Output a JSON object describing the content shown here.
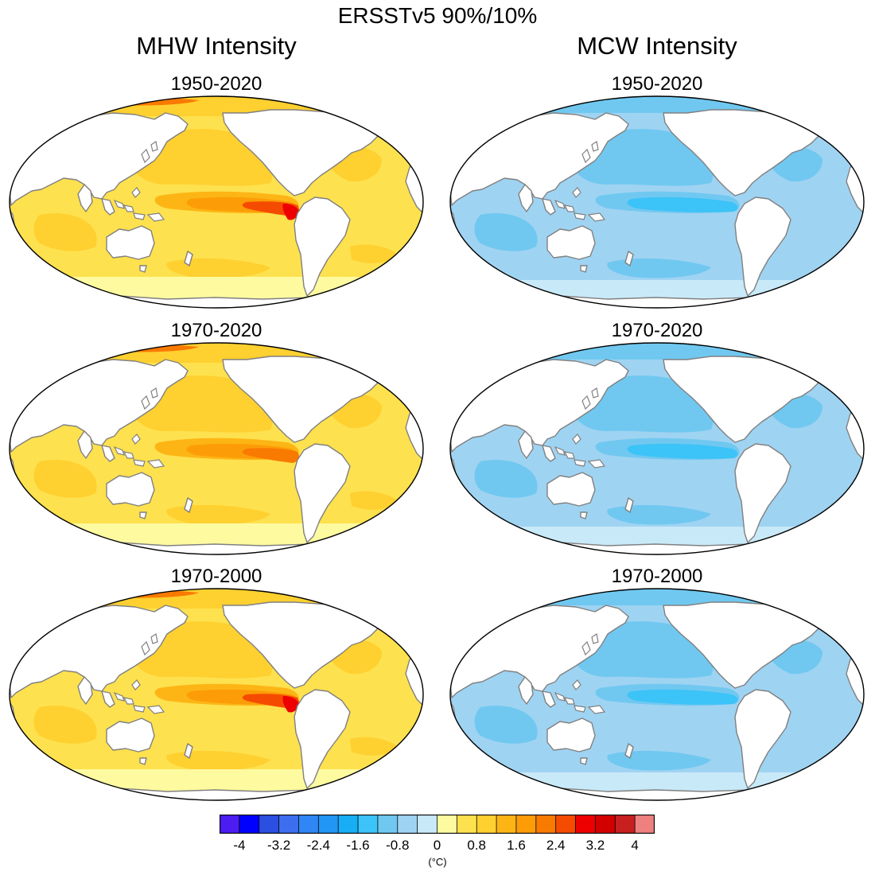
{
  "title": "ERSSTv5 90%/10%",
  "columns": [
    {
      "title": "MHW Intensity",
      "kind": "mhw",
      "panels": [
        {
          "period": "1950-2020",
          "band_max_level": 3.2
        },
        {
          "period": "1970-2020",
          "band_max_level": 2.8
        },
        {
          "period": "1970-2000",
          "band_max_level": 3.6
        }
      ]
    },
    {
      "title": "MCW Intensity",
      "kind": "mcw",
      "panels": [
        {
          "period": "1950-2020",
          "band_max_level": -1.6
        },
        {
          "period": "1970-2020",
          "band_max_level": -1.6
        },
        {
          "period": "1970-2000",
          "band_max_level": -1.6
        }
      ]
    }
  ],
  "colorbar": {
    "colors": [
      "#4d1cf0",
      "#0000ff",
      "#2b4fe0",
      "#3d6ef0",
      "#2f86f4",
      "#2196f3",
      "#17aef5",
      "#3cc3f7",
      "#70c8f0",
      "#9fd3f2",
      "#c8e9f8",
      "#fefaa0",
      "#fee14e",
      "#fed030",
      "#fdb515",
      "#fc9d07",
      "#f97a00",
      "#f54b00",
      "#ee0000",
      "#d30000",
      "#c82020",
      "#ee8080"
    ],
    "tick_labels": [
      "-4",
      "-3.2",
      "-2.4",
      "-1.6",
      "-0.8",
      "0",
      "0.8",
      "1.6",
      "2.4",
      "3.2",
      "4"
    ],
    "units": "(°C)"
  }
}
